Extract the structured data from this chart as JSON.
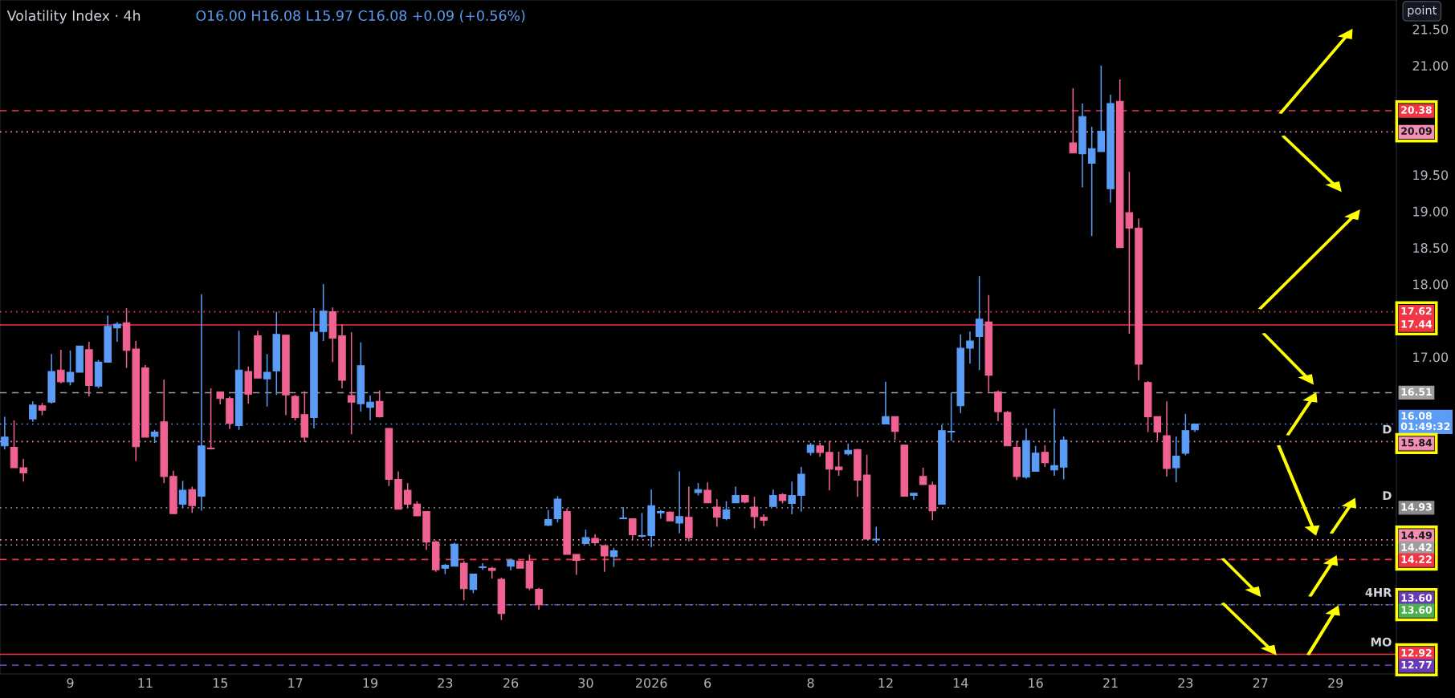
{
  "chart_data": {
    "type": "candlestick",
    "title": "Volatility Index · 4h",
    "subtitle": "O16.00 H16.08 L15.97 C16.08 +0.09 (+0.56%)",
    "colors": [
      "#5b9cf6",
      "#f06292",
      "#f06292",
      "#5b9cf6",
      "#f06292",
      "#5b9cf6",
      "#f06292",
      "#5b9cf6",
      "#5b9cf6",
      "#f06292",
      "#5b9cf6",
      "#5b9cf6",
      "#5b9cf6",
      "#f06292",
      "#f06292",
      "#f06292",
      "#5b9cf6",
      "#f06292",
      "#f06292",
      "#5b9cf6",
      "#f06292",
      "#5b9cf6",
      "#f06292",
      "#f06292",
      "#f06292",
      "#5b9cf6",
      "#f06292",
      "#f06292",
      "#5b9cf6",
      "#5b9cf6",
      "#f06292",
      "#f06292",
      "#f06292",
      "#5b9cf6",
      "#5b9cf6",
      "#f06292",
      "#f06292",
      "#f06292",
      "#5b9cf6",
      "#5b9cf6",
      "#f06292",
      "#f06292",
      "#f06292",
      "#f06292",
      "#f06292",
      "#f06292",
      "#f06292",
      "#5b9cf6",
      "#5b9cf6",
      "#f06292",
      "#5b9cf6",
      "#5b9cf6",
      "#f06292",
      "#f06292",
      "#5b9cf6",
      "#f06292",
      "#f06292",
      "#f06292",
      "#5b9cf6",
      "#5b9cf6",
      "#f06292",
      "#f06292",
      "#5b9cf6",
      "#f06292",
      "#f06292",
      "#5b9cf6",
      "#5b9cf6",
      "#f06292",
      "#5b9cf6",
      "#5b9cf6",
      "#5b9cf6",
      "#f06292",
      "#5b9cf6",
      "#f06292",
      "#5b9cf6",
      "#f06292",
      "#f06292",
      "#5b9cf6",
      "#5b9cf6",
      "#f06292",
      "#f06292",
      "#f06292",
      "#5b9cf6",
      "#f06292",
      "#5b9cf6",
      "#5b9cf6",
      "#5b9cf6",
      "#f06292",
      "#f06292",
      "#f06292",
      "#5b9cf6",
      "#f06292",
      "#f06292",
      "#5b9cf6",
      "#5b9cf6",
      "#f06292",
      "#f06292",
      "#5b9cf6",
      "#f06292",
      "#f06292",
      "#5b9cf6",
      "#5b9cf6",
      "#5b9cf6",
      "#5b9cf6",
      "#5b9cf6",
      "#f06292",
      "#f06292",
      "#f06292",
      "#f06292",
      "#5b9cf6",
      "#5b9cf6",
      "#f06292",
      "#5b9cf6",
      "#5b9cf6",
      "#f06292",
      "#5b9cf6",
      "#5b9cf6",
      "#5b9cf6",
      "#5b9cf6",
      "#f06292",
      "#f06292",
      "#f06292",
      "#f06292",
      "#f06292",
      "#f06292",
      "#5b9cf6",
      "#5b9cf6",
      "#5b9cf6",
      null,
      null,
      null,
      null,
      null,
      null,
      null,
      null,
      null,
      null,
      null,
      null,
      null,
      null,
      null,
      null,
      null,
      null,
      null,
      null,
      null
    ],
    "categories": [
      null,
      null,
      null,
      null,
      null,
      null,
      null,
      "9",
      null,
      null,
      null,
      null,
      null,
      null,
      null,
      "11",
      null,
      null,
      null,
      null,
      null,
      null,
      null,
      "15",
      null,
      null,
      null,
      null,
      null,
      null,
      null,
      "17",
      null,
      null,
      null,
      null,
      null,
      null,
      null,
      "19",
      null,
      null,
      null,
      null,
      null,
      null,
      null,
      "23",
      null,
      null,
      null,
      null,
      null,
      null,
      "26",
      null,
      null,
      null,
      null,
      null,
      null,
      null,
      "30",
      null,
      null,
      null,
      null,
      null,
      null,
      "2026",
      null,
      null,
      null,
      null,
      null,
      "6",
      null,
      null,
      null,
      null,
      null,
      null,
      null,
      null,
      null,
      null,
      "8",
      null,
      null,
      null,
      null,
      null,
      null,
      null,
      "12",
      null,
      null,
      null,
      null,
      null,
      null,
      null,
      "14",
      null,
      null,
      null,
      null,
      null,
      null,
      null,
      "16",
      null,
      null,
      null,
      null,
      null,
      null,
      null,
      "21",
      null,
      null,
      null,
      null,
      null,
      null,
      null,
      "23",
      null,
      null,
      null,
      null,
      null,
      null,
      null,
      "27",
      null,
      null,
      null,
      null,
      null,
      null,
      null,
      "29",
      null,
      null,
      null,
      null,
      null,
      null
    ],
    "ohlc": [
      [
        15.78,
        16.18,
        15.73,
        15.9
      ],
      [
        15.76,
        16.13,
        15.48,
        15.48
      ],
      [
        15.48,
        15.6,
        15.29,
        15.41
      ],
      [
        16.15,
        16.39,
        16.11,
        16.34
      ],
      [
        16.33,
        16.37,
        16.2,
        16.27
      ],
      [
        16.38,
        17.04,
        16.36,
        16.8
      ],
      [
        16.82,
        17.1,
        16.64,
        16.66
      ],
      [
        16.66,
        17.09,
        16.61,
        16.79
      ],
      [
        16.79,
        17.15,
        16.79,
        17.15
      ],
      [
        17.1,
        17.21,
        16.46,
        16.61
      ],
      [
        16.6,
        16.96,
        16.57,
        16.93
      ],
      [
        16.93,
        17.57,
        16.93,
        17.42
      ],
      [
        17.4,
        17.48,
        17.21,
        17.45
      ],
      [
        17.47,
        17.67,
        16.85,
        17.09
      ],
      [
        17.11,
        17.22,
        15.57,
        15.77
      ],
      [
        16.85,
        16.89,
        15.9,
        15.9
      ],
      [
        15.91,
        16.0,
        15.82,
        15.97
      ],
      [
        16.11,
        16.69,
        15.27,
        15.36
      ],
      [
        15.36,
        15.44,
        14.85,
        14.85
      ],
      [
        14.98,
        15.3,
        14.93,
        15.17
      ],
      [
        15.18,
        15.22,
        14.86,
        14.96
      ],
      [
        15.09,
        17.86,
        14.89,
        15.78
      ],
      [
        15.75,
        16.57,
        15.73,
        15.74
      ],
      [
        16.52,
        16.52,
        16.35,
        16.43
      ],
      [
        16.43,
        16.46,
        16.01,
        16.09
      ],
      [
        16.06,
        17.36,
        16.0,
        16.82
      ],
      [
        16.8,
        16.87,
        16.36,
        16.49
      ],
      [
        17.29,
        17.36,
        16.71,
        16.71
      ],
      [
        16.7,
        17.04,
        16.32,
        16.79
      ],
      [
        16.81,
        17.62,
        16.48,
        17.31
      ],
      [
        17.3,
        17.3,
        16.2,
        16.48
      ],
      [
        16.46,
        16.48,
        16.13,
        16.17
      ],
      [
        16.21,
        16.53,
        15.83,
        15.9
      ],
      [
        16.17,
        17.67,
        16.02,
        17.34
      ],
      [
        17.35,
        18.0,
        17.22,
        17.63
      ],
      [
        17.62,
        17.68,
        16.93,
        17.26
      ],
      [
        17.29,
        17.45,
        16.57,
        16.68
      ],
      [
        16.47,
        17.34,
        15.94,
        16.38
      ],
      [
        16.36,
        17.2,
        16.25,
        16.88
      ],
      [
        16.31,
        16.47,
        16.13,
        16.38
      ],
      [
        16.39,
        16.54,
        16.17,
        16.18
      ],
      [
        16.02,
        16.02,
        15.23,
        15.32
      ],
      [
        15.32,
        15.43,
        14.91,
        14.91
      ],
      [
        15.17,
        15.27,
        14.93,
        14.98
      ],
      [
        14.98,
        15.02,
        14.82,
        14.82
      ],
      [
        14.88,
        14.88,
        14.35,
        14.46
      ],
      [
        14.46,
        14.48,
        14.05,
        14.08
      ],
      [
        14.1,
        14.16,
        14.02,
        14.14
      ],
      [
        14.13,
        14.45,
        14.13,
        14.43
      ],
      [
        14.17,
        14.2,
        13.66,
        13.82
      ],
      [
        13.81,
        14.02,
        13.76,
        14.02
      ],
      [
        14.11,
        14.17,
        14.08,
        14.12
      ],
      [
        14.1,
        14.12,
        13.96,
        14.07
      ],
      [
        13.95,
        13.97,
        13.39,
        13.48
      ],
      [
        14.13,
        14.23,
        14.07,
        14.21
      ],
      [
        14.2,
        14.21,
        14.1,
        14.1
      ],
      [
        14.2,
        14.29,
        13.8,
        13.83
      ],
      [
        13.81,
        13.83,
        13.53,
        13.6
      ],
      [
        14.69,
        14.9,
        14.68,
        14.77
      ],
      [
        14.78,
        15.09,
        14.73,
        15.05
      ],
      [
        14.88,
        14.92,
        14.29,
        14.29
      ],
      [
        14.29,
        14.29,
        14.01,
        14.21
      ],
      [
        14.44,
        14.63,
        14.43,
        14.52
      ],
      [
        14.51,
        14.57,
        14.43,
        14.45
      ],
      [
        14.41,
        14.41,
        14.05,
        14.27
      ],
      [
        14.26,
        14.38,
        14.12,
        14.34
      ],
      [
        14.78,
        14.94,
        14.78,
        14.79
      ],
      [
        14.78,
        14.78,
        14.5,
        14.56
      ],
      [
        14.54,
        14.86,
        14.52,
        14.55
      ],
      [
        14.55,
        15.18,
        14.39,
        14.96
      ],
      [
        14.86,
        14.9,
        14.78,
        14.88
      ],
      [
        14.87,
        14.88,
        14.75,
        14.75
      ],
      [
        14.72,
        15.43,
        14.58,
        14.81
      ],
      [
        14.8,
        15.22,
        14.47,
        14.52
      ],
      [
        15.14,
        15.27,
        15.1,
        15.18
      ],
      [
        15.17,
        15.28,
        15.0,
        15.0
      ],
      [
        14.94,
        15.05,
        14.67,
        14.8
      ],
      [
        14.78,
        15.02,
        14.76,
        14.9
      ],
      [
        15.0,
        15.22,
        15.0,
        15.1
      ],
      [
        15.1,
        15.1,
        14.99,
        15.01
      ],
      [
        14.94,
        15.08,
        14.65,
        14.81
      ],
      [
        14.8,
        14.84,
        14.68,
        14.76
      ],
      [
        14.95,
        15.18,
        14.94,
        15.1
      ],
      [
        15.11,
        15.13,
        14.99,
        15.03
      ],
      [
        14.99,
        15.29,
        14.84,
        15.1
      ],
      [
        15.1,
        15.49,
        14.88,
        15.39
      ],
      [
        15.69,
        15.82,
        15.65,
        15.79
      ],
      [
        15.78,
        15.82,
        15.63,
        15.69
      ],
      [
        15.69,
        15.85,
        15.17,
        15.46
      ],
      [
        15.49,
        15.7,
        15.37,
        15.45
      ],
      [
        15.67,
        15.81,
        15.65,
        15.72
      ],
      [
        15.73,
        15.74,
        15.08,
        15.31
      ],
      [
        15.38,
        15.66,
        14.5,
        14.5
      ],
      [
        14.49,
        14.67,
        14.45,
        14.5
      ],
      [
        16.08,
        16.66,
        16.08,
        16.18
      ],
      [
        16.18,
        16.18,
        15.86,
        15.98
      ],
      [
        15.79,
        15.79,
        15.09,
        15.09
      ],
      [
        15.1,
        15.13,
        15.04,
        15.13
      ],
      [
        15.36,
        15.48,
        15.25,
        15.25
      ],
      [
        15.24,
        15.29,
        14.76,
        14.89
      ],
      [
        14.98,
        16.07,
        14.98,
        15.99
      ],
      [
        15.97,
        16.51,
        15.85,
        15.98
      ],
      [
        16.33,
        17.31,
        16.23,
        17.12
      ],
      [
        17.12,
        17.35,
        16.91,
        17.22
      ],
      [
        17.28,
        18.11,
        16.82,
        17.52
      ],
      [
        17.48,
        17.85,
        16.52,
        16.75
      ],
      [
        16.52,
        16.54,
        16.12,
        16.25
      ],
      [
        16.24,
        16.26,
        15.78,
        15.78
      ],
      [
        15.76,
        15.85,
        15.31,
        15.36
      ],
      [
        15.35,
        16.02,
        15.33,
        15.85
      ],
      [
        15.43,
        15.78,
        15.43,
        15.68
      ],
      [
        15.69,
        15.79,
        15.49,
        15.55
      ],
      [
        15.45,
        16.29,
        15.37,
        15.51
      ],
      [
        15.49,
        15.91,
        15.32,
        15.86
      ],
      [
        19.94,
        20.69,
        19.8,
        19.8
      ],
      [
        19.79,
        20.48,
        19.33,
        20.3
      ],
      [
        19.66,
        20.16,
        18.66,
        19.86
      ],
      [
        19.82,
        21.0,
        19.82,
        20.1
      ],
      [
        19.31,
        20.6,
        19.12,
        20.48
      ],
      [
        20.51,
        20.81,
        18.5,
        18.5
      ],
      [
        18.98,
        19.54,
        17.32,
        18.77
      ],
      [
        18.77,
        18.9,
        16.68,
        16.9
      ],
      [
        16.65,
        16.67,
        15.97,
        16.18
      ],
      [
        16.18,
        16.18,
        15.85,
        15.97
      ],
      [
        15.92,
        16.39,
        15.36,
        15.47
      ],
      [
        15.48,
        15.91,
        15.28,
        15.64
      ],
      [
        15.68,
        16.22,
        15.65,
        15.99
      ],
      [
        16.0,
        16.08,
        15.97,
        16.08
      ],
      null,
      null,
      null,
      null,
      null,
      null,
      null,
      null,
      null,
      null,
      null,
      null,
      null,
      null,
      null,
      null,
      null,
      null,
      null,
      null,
      null
    ],
    "ylim": [
      12.65,
      21.9
    ],
    "yticks": [
      {
        "value": 17,
        "label": "17.00"
      },
      {
        "value": 18,
        "label": "18.00"
      },
      {
        "value": 18.5,
        "label": "18.50"
      },
      {
        "value": 19,
        "label": "19.00"
      },
      {
        "value": 19.5,
        "label": "19.50"
      },
      {
        "value": 21,
        "label": "21.00"
      },
      {
        "value": 21.5,
        "label": "21.50"
      }
    ],
    "ref_lines": [
      {
        "axis": "y",
        "value": 20.38,
        "label": "20.38",
        "color": "#f23645",
        "line_style": "dashed"
      },
      {
        "axis": "y",
        "value": 20.09,
        "label": "20.09",
        "color": "#f48fb1",
        "line_style": "dotted"
      },
      {
        "axis": "y",
        "value": 17.62,
        "label": "17.62",
        "color": "#f23645",
        "line_style": "dotted"
      },
      {
        "axis": "y",
        "value": 17.44,
        "label": "17.44",
        "color": "#f23645",
        "line_style": "solid"
      },
      {
        "axis": "y",
        "value": 16.51,
        "label": "16.51",
        "color": "#9e9e9e",
        "line_style": "dashed"
      },
      {
        "axis": "y",
        "value": 16.08,
        "label": "16.08\n01:49:32",
        "color": "#5b9cf6",
        "line_style": "dotted"
      },
      {
        "axis": "y",
        "value": 15.84,
        "label": "15.84",
        "color": "#f48fb1",
        "line_style": "dotted"
      },
      {
        "axis": "y",
        "value": 14.93,
        "label": "14.93",
        "color": "#8a8a8a",
        "line_style": "dotted"
      },
      {
        "axis": "y",
        "value": 14.49,
        "label": "14.49",
        "color": "#f48fb1",
        "line_style": "dotted"
      },
      {
        "axis": "y",
        "value": 14.42,
        "label": "14.42",
        "color": "#9e9e9e",
        "line_style": "dotted"
      },
      {
        "axis": "y",
        "value": 14.22,
        "label": "14.22",
        "color": "#f23645",
        "line_style": "dashed"
      },
      {
        "axis": "y",
        "value": 13.6,
        "label": "13.60",
        "color": "#673ab7",
        "line_style": "dashed"
      },
      {
        "axis": "y",
        "value": 13.6,
        "label": "13.60",
        "color": "#4caf50",
        "line_style": "dotted"
      },
      {
        "axis": "y",
        "value": 12.92,
        "label": "12.92",
        "color": "#f23645",
        "line_style": "solid"
      },
      {
        "axis": "y",
        "value": 12.77,
        "label": "12.77",
        "color": "#673ab7",
        "line_style": "dashed"
      }
    ],
    "annotations": [
      {
        "text": "D",
        "y": 15.84
      },
      {
        "text": "D",
        "y": 14.93
      },
      {
        "text": "4HR",
        "y": 13.6
      },
      {
        "text": "MO",
        "y": 12.92
      },
      "point"
    ]
  }
}
